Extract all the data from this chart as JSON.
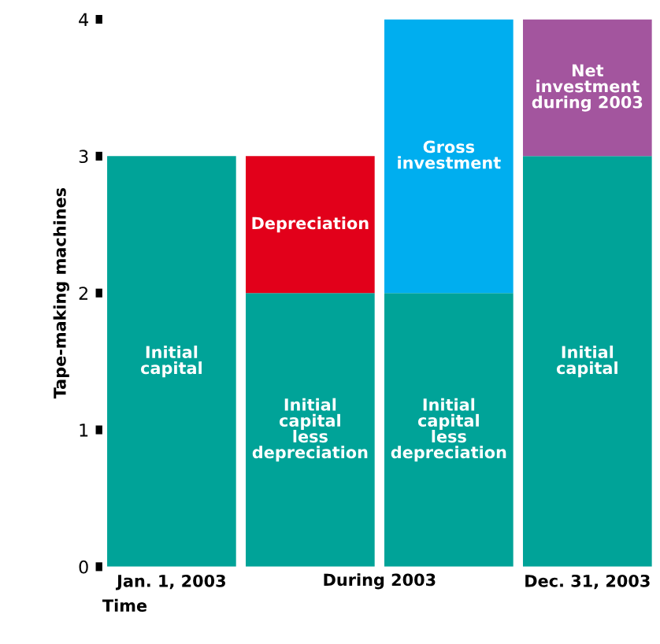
{
  "chart_data": {
    "type": "bar",
    "stacked": true,
    "xlabel": "Time",
    "ylabel": "Tape-making machines",
    "categories": [
      "Jan. 1, 2003",
      null,
      null,
      "Dec. 31, 2003"
    ],
    "series": [
      {
        "color": "#00a398",
        "values": [
          3,
          2,
          2,
          3
        ],
        "value_labels": [
          "Initial\ncapital",
          "Initial\ncapital\nless\ndepreciation",
          "Initial\ncapital\nless\ndepreciation",
          "Initial\ncapital"
        ]
      },
      {
        "color": "#e2001a",
        "values": [
          null,
          1,
          null,
          null
        ],
        "value_labels": [
          null,
          "Depreciation",
          null,
          null
        ]
      },
      {
        "color": "#00aeef",
        "values": [
          null,
          null,
          2,
          null
        ],
        "value_labels": [
          null,
          null,
          "Gross\ninvestment",
          null
        ]
      },
      {
        "color": "#a3559e",
        "values": [
          null,
          null,
          null,
          1
        ],
        "value_labels": [
          null,
          null,
          null,
          "Net\ninvestment\nduring 2003"
        ]
      }
    ],
    "annotations": [
      "During 2003"
    ],
    "ylim": [
      0,
      4
    ],
    "yticks": [
      0,
      1,
      2,
      3,
      4
    ],
    "grid": false
  }
}
